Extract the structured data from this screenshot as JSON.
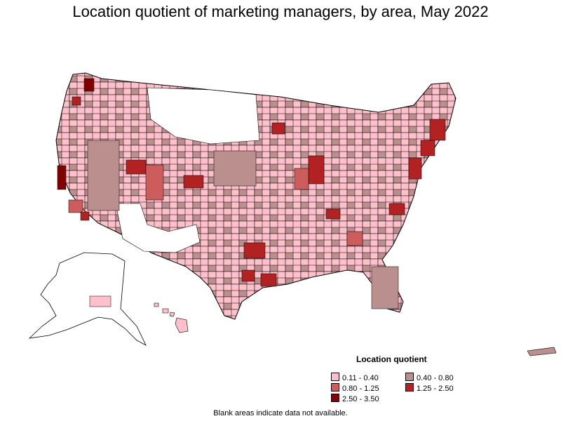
{
  "title": "Location quotient of marketing managers, by area, May 2022",
  "legend": {
    "title": "Location quotient",
    "items": [
      {
        "label": "0.11 - 0.40",
        "color": "#ffc0cb"
      },
      {
        "label": "0.40 - 0.80",
        "color": "#bc8f8f"
      },
      {
        "label": "0.80 - 1.25",
        "color": "#cd5c5c"
      },
      {
        "label": "1.25 - 2.50",
        "color": "#b22222"
      },
      {
        "label": "2.50 - 3.50",
        "color": "#800000"
      }
    ]
  },
  "footnote": "Blank areas indicate data not available.",
  "colors": {
    "background": "#ffffff",
    "border": "#000000",
    "no_data": "#ffffff"
  }
}
